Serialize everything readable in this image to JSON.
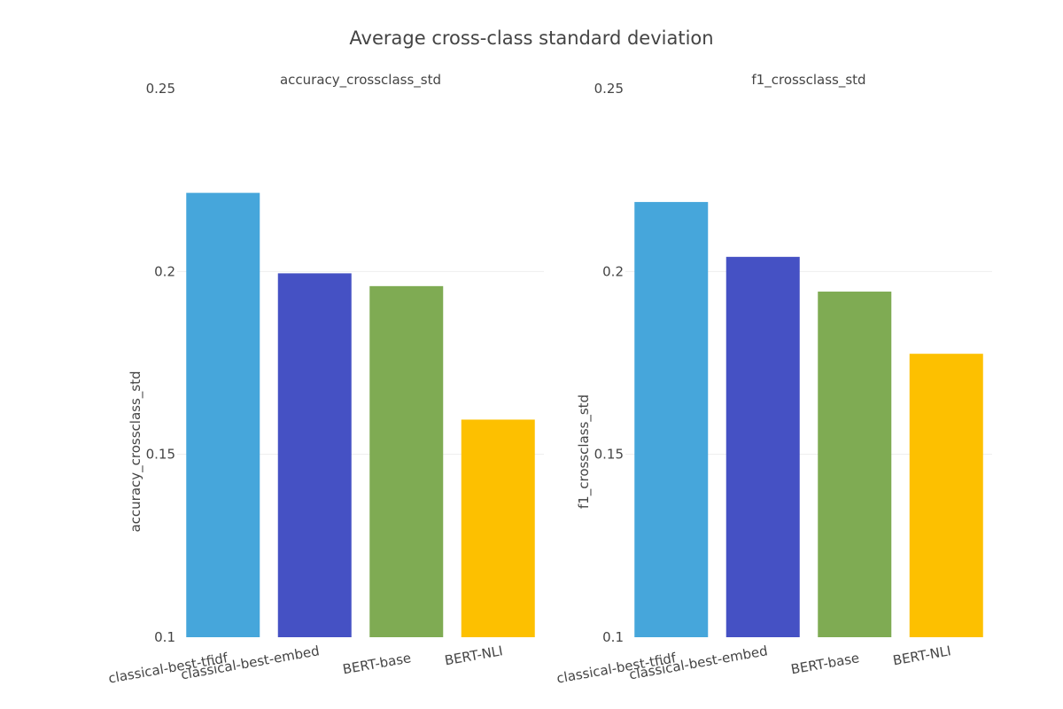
{
  "title": "Average cross-class standard deviation",
  "palette": {
    "classical-best-tfidf": "#46a6db",
    "classical-best-embed": "#4551c4",
    "BERT-base": "#7fab53",
    "BERT-NLI": "#fdc000"
  },
  "chart_data": [
    {
      "type": "bar",
      "subplot_title": "accuracy_crossclass_std",
      "ylabel": "accuracy_crossclass_std",
      "xlabel": "",
      "categories": [
        "classical-best-tfidf",
        "classical-best-embed",
        "BERT-base",
        "BERT-NLI"
      ],
      "values": [
        0.2215,
        0.1995,
        0.196,
        0.1595
      ],
      "ylim": [
        0.1,
        0.25
      ],
      "yticks": [
        0.1,
        0.15,
        0.2,
        0.25
      ],
      "ytick_labels": [
        "0.1",
        "0.15",
        "0.2",
        "0.25"
      ],
      "grid": true
    },
    {
      "type": "bar",
      "subplot_title": "f1_crossclass_std",
      "ylabel": "f1_crossclass_std",
      "xlabel": "",
      "categories": [
        "classical-best-tfidf",
        "classical-best-embed",
        "BERT-base",
        "BERT-NLI"
      ],
      "values": [
        0.219,
        0.204,
        0.1945,
        0.1775
      ],
      "ylim": [
        0.1,
        0.25
      ],
      "yticks": [
        0.1,
        0.15,
        0.2,
        0.25
      ],
      "ytick_labels": [
        "0.1",
        "0.15",
        "0.2",
        "0.25"
      ],
      "grid": true
    }
  ]
}
